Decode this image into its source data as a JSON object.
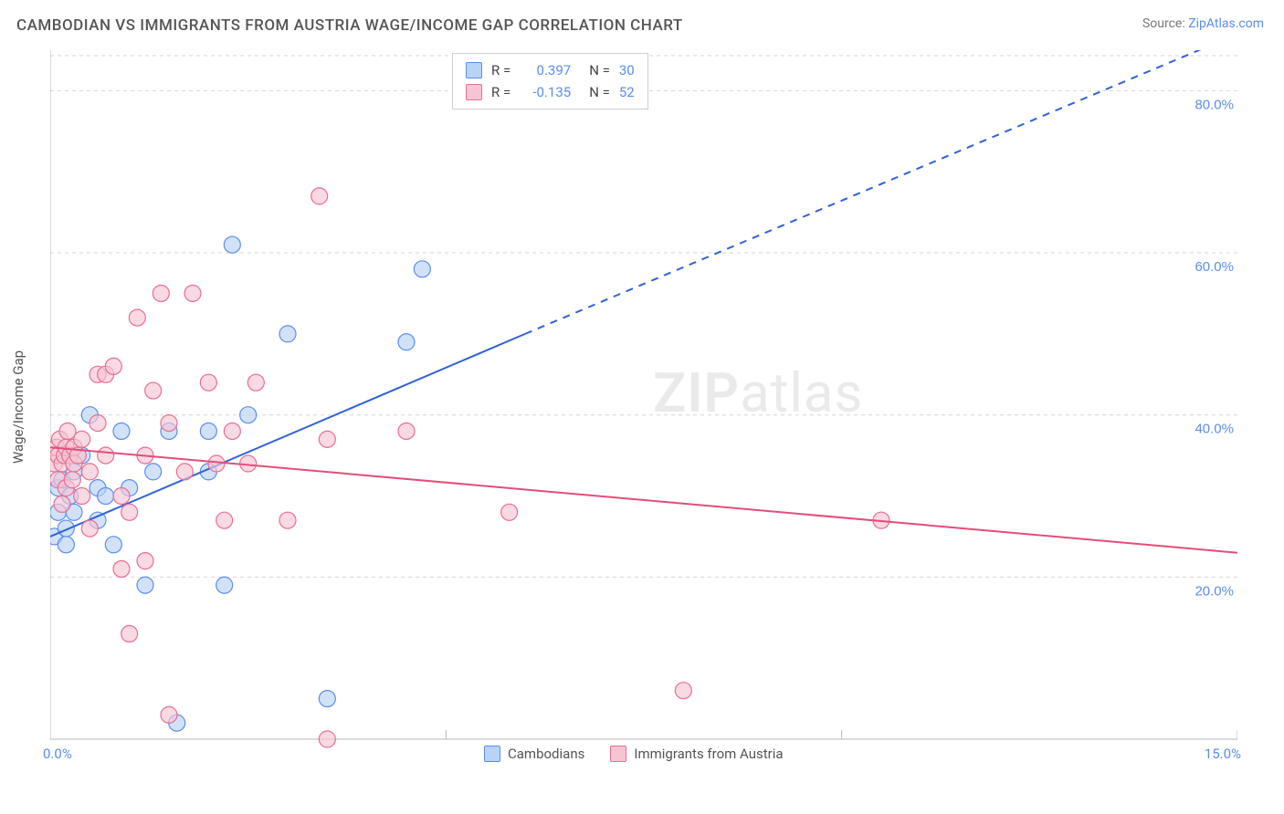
{
  "title": "CAMBODIAN VS IMMIGRANTS FROM AUSTRIA WAGE/INCOME GAP CORRELATION CHART",
  "source_prefix": "Source: ",
  "source_link": "ZipAtlas.com",
  "ylabel": "Wage/Income Gap",
  "watermark": {
    "bold": "ZIP",
    "rest": "atlas"
  },
  "chart": {
    "type": "scatter",
    "xlim": [
      0,
      15
    ],
    "ylim": [
      0,
      85
    ],
    "x_ticks": [
      0,
      5,
      10,
      15
    ],
    "x_tick_labels": [
      "0.0%",
      "",
      "",
      "15.0%"
    ],
    "y_ticks": [
      20,
      40,
      60,
      80
    ],
    "y_tick_labels": [
      "20.0%",
      "40.0%",
      "60.0%",
      "80.0%"
    ],
    "grid_color": "#d6d6d6",
    "axis_color": "#b9b9b9",
    "background_color": "#ffffff",
    "series": [
      {
        "name": "Cambodians",
        "fill": "#b8d3f5",
        "stroke": "#5b8def",
        "r_value": "0.397",
        "n_value": "30",
        "trend": {
          "x1": 0,
          "y1": 25,
          "x2": 6.0,
          "y2": 50,
          "x2_dash": 15,
          "y2_dash": 87,
          "color": "#2f62d9",
          "width": 2
        },
        "points": [
          [
            0.05,
            25
          ],
          [
            0.1,
            28
          ],
          [
            0.1,
            31
          ],
          [
            0.15,
            32
          ],
          [
            0.2,
            24
          ],
          [
            0.2,
            26
          ],
          [
            0.25,
            30
          ],
          [
            0.3,
            33
          ],
          [
            0.3,
            28
          ],
          [
            0.4,
            35
          ],
          [
            0.5,
            40
          ],
          [
            0.6,
            27
          ],
          [
            0.6,
            31
          ],
          [
            0.7,
            30
          ],
          [
            0.8,
            24
          ],
          [
            0.9,
            38
          ],
          [
            1.0,
            31
          ],
          [
            1.2,
            19
          ],
          [
            1.3,
            33
          ],
          [
            1.5,
            38
          ],
          [
            1.6,
            2
          ],
          [
            2.0,
            33
          ],
          [
            2.0,
            38
          ],
          [
            2.2,
            19
          ],
          [
            2.3,
            61
          ],
          [
            2.5,
            40
          ],
          [
            3.0,
            50
          ],
          [
            3.5,
            5
          ],
          [
            4.5,
            49
          ],
          [
            4.7,
            58
          ]
        ]
      },
      {
        "name": "Immigrants from Austria",
        "fill": "#f6c5d3",
        "stroke": "#e86e93",
        "r_value": "-0.135",
        "n_value": "52",
        "trend": {
          "x1": 0,
          "y1": 36,
          "x2": 15,
          "y2": 23,
          "color": "#e34d7a",
          "width": 2
        },
        "points": [
          [
            0.05,
            34
          ],
          [
            0.08,
            36
          ],
          [
            0.1,
            35
          ],
          [
            0.1,
            32
          ],
          [
            0.12,
            37
          ],
          [
            0.15,
            34
          ],
          [
            0.15,
            29
          ],
          [
            0.18,
            35
          ],
          [
            0.2,
            36
          ],
          [
            0.2,
            31
          ],
          [
            0.22,
            38
          ],
          [
            0.25,
            35
          ],
          [
            0.28,
            32
          ],
          [
            0.3,
            36
          ],
          [
            0.3,
            34
          ],
          [
            0.35,
            35
          ],
          [
            0.4,
            30
          ],
          [
            0.4,
            37
          ],
          [
            0.5,
            33
          ],
          [
            0.5,
            26
          ],
          [
            0.6,
            45
          ],
          [
            0.6,
            39
          ],
          [
            0.7,
            45
          ],
          [
            0.7,
            35
          ],
          [
            0.8,
            46
          ],
          [
            0.9,
            30
          ],
          [
            0.9,
            21
          ],
          [
            1.0,
            28
          ],
          [
            1.0,
            13
          ],
          [
            1.1,
            52
          ],
          [
            1.2,
            35
          ],
          [
            1.2,
            22
          ],
          [
            1.3,
            43
          ],
          [
            1.4,
            55
          ],
          [
            1.5,
            39
          ],
          [
            1.5,
            3
          ],
          [
            1.7,
            33
          ],
          [
            1.8,
            55
          ],
          [
            2.0,
            44
          ],
          [
            2.1,
            34
          ],
          [
            2.2,
            27
          ],
          [
            2.3,
            38
          ],
          [
            2.5,
            34
          ],
          [
            2.6,
            44
          ],
          [
            3.0,
            27
          ],
          [
            3.4,
            67
          ],
          [
            3.5,
            37
          ],
          [
            3.5,
            0
          ],
          [
            4.5,
            38
          ],
          [
            5.8,
            28
          ],
          [
            8.0,
            6
          ],
          [
            10.5,
            27
          ]
        ]
      }
    ]
  },
  "legend_bottom": [
    {
      "label": "Cambodians",
      "fill": "#b8d3f5",
      "stroke": "#5b8def"
    },
    {
      "label": "Immigrants from Austria",
      "fill": "#f6c5d3",
      "stroke": "#e86e93"
    }
  ],
  "legend_top": [
    {
      "fill": "#b8d3f5",
      "stroke": "#5b8def",
      "r": "0.397",
      "n": "30"
    },
    {
      "fill": "#f6c5d3",
      "stroke": "#e86e93",
      "r": "-0.135",
      "n": "52"
    }
  ]
}
